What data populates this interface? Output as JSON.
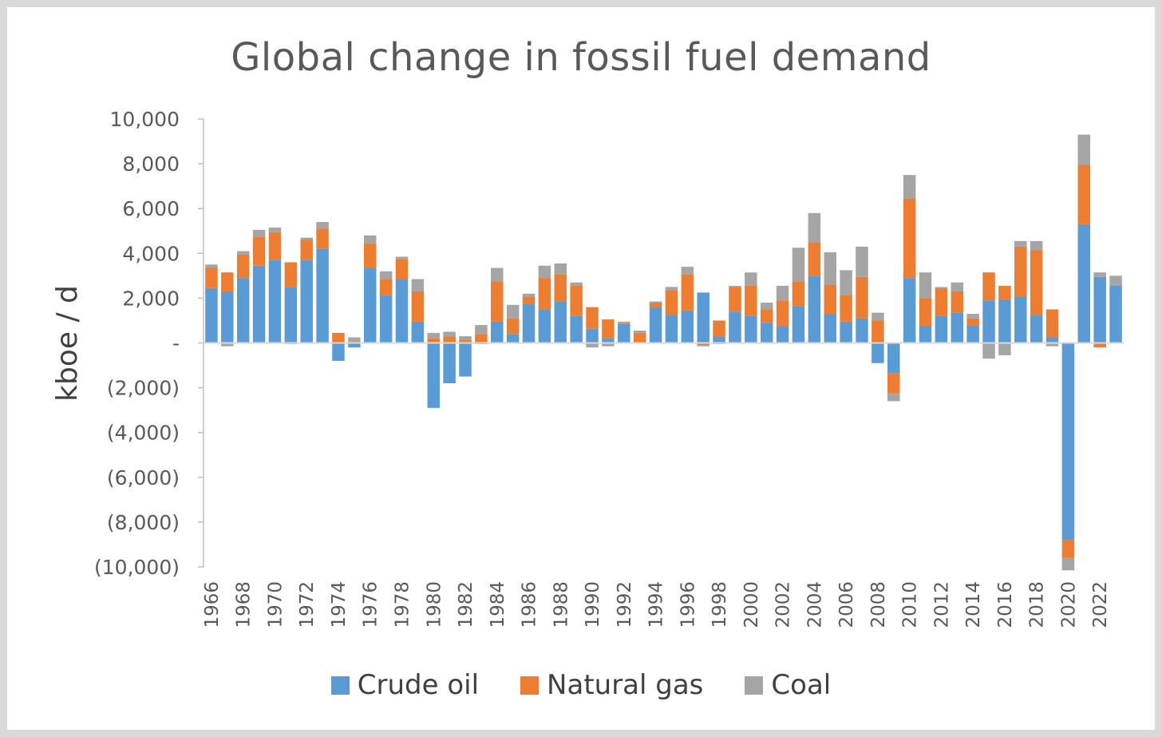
{
  "chart_data": {
    "type": "bar",
    "stacked": true,
    "title": "Global change in fossil fuel demand",
    "ylabel": "kboe / d",
    "xlabel": "",
    "ylim": [
      -10000,
      10000
    ],
    "y_ticks": [
      10000,
      8000,
      6000,
      4000,
      2000,
      0,
      -2000,
      -4000,
      -6000,
      -8000,
      -10000
    ],
    "y_tick_labels": [
      "10,000",
      "8,000",
      "6,000",
      "4,000",
      "2,000",
      "-",
      "(2,000)",
      "(4,000)",
      "(6,000)",
      "(8,000)",
      "(10,000)"
    ],
    "categories": [
      1966,
      1967,
      1968,
      1969,
      1970,
      1971,
      1972,
      1973,
      1974,
      1975,
      1976,
      1977,
      1978,
      1979,
      1980,
      1981,
      1982,
      1983,
      1984,
      1985,
      1986,
      1987,
      1988,
      1989,
      1990,
      1991,
      1992,
      1993,
      1994,
      1995,
      1996,
      1997,
      1998,
      1999,
      2000,
      2001,
      2002,
      2003,
      2004,
      2005,
      2006,
      2007,
      2008,
      2009,
      2010,
      2011,
      2012,
      2013,
      2014,
      2015,
      2016,
      2017,
      2018,
      2019,
      2020,
      2021,
      2022,
      2023
    ],
    "x_tick_labels": [
      "1966",
      "1968",
      "1970",
      "1972",
      "1974",
      "1976",
      "1978",
      "1980",
      "1982",
      "1984",
      "1986",
      "1988",
      "1990",
      "1992",
      "1994",
      "1996",
      "1998",
      "2000",
      "2002",
      "2004",
      "2006",
      "2008",
      "2010",
      "2012",
      "2014",
      "2016",
      "2018",
      "2020",
      "2022"
    ],
    "legend_position": "bottom",
    "grid": false,
    "series": [
      {
        "name": "Crude oil",
        "color": "#5b9bd5",
        "values": [
          2450,
          2300,
          2900,
          3450,
          3700,
          2500,
          3700,
          4200,
          -800,
          -200,
          3350,
          2150,
          2850,
          950,
          -2900,
          -1800,
          -1500,
          -50,
          950,
          400,
          1750,
          1500,
          1850,
          1200,
          650,
          200,
          850,
          0,
          1600,
          1250,
          1450,
          2250,
          300,
          1400,
          1200,
          900,
          750,
          1650,
          3000,
          1300,
          950,
          1100,
          -900,
          -1350,
          2900,
          750,
          1200,
          1350,
          800,
          1900,
          1950,
          2050,
          1250,
          250,
          -8800,
          5300,
          2950,
          2550
        ]
      },
      {
        "name": "Natural gas",
        "color": "#ed7d31",
        "values": [
          900,
          850,
          1050,
          1300,
          1250,
          1100,
          900,
          900,
          450,
          50,
          1100,
          700,
          900,
          1350,
          200,
          300,
          150,
          400,
          1800,
          700,
          300,
          1400,
          1200,
          1350,
          950,
          850,
          50,
          450,
          200,
          1100,
          1600,
          -100,
          700,
          1100,
          1350,
          600,
          1150,
          1100,
          1500,
          1300,
          1200,
          1850,
          1000,
          -900,
          3550,
          1250,
          1250,
          950,
          300,
          1250,
          600,
          2250,
          2900,
          1250,
          -800,
          2650,
          -200,
          0
        ]
      },
      {
        "name": "Coal",
        "color": "#a5a5a5",
        "values": [
          150,
          -150,
          150,
          300,
          200,
          -50,
          100,
          300,
          0,
          200,
          350,
          350,
          100,
          550,
          250,
          200,
          150,
          400,
          600,
          600,
          150,
          550,
          500,
          150,
          -200,
          -150,
          50,
          100,
          50,
          150,
          350,
          -50,
          -50,
          50,
          600,
          300,
          650,
          1500,
          1300,
          1450,
          1100,
          1350,
          350,
          -350,
          1050,
          1150,
          50,
          400,
          200,
          -700,
          -550,
          250,
          400,
          -150,
          -550,
          1350,
          200,
          450
        ]
      }
    ]
  },
  "legend": {
    "crude_oil": "Crude oil",
    "natural_gas": "Natural gas",
    "coal": "Coal"
  }
}
